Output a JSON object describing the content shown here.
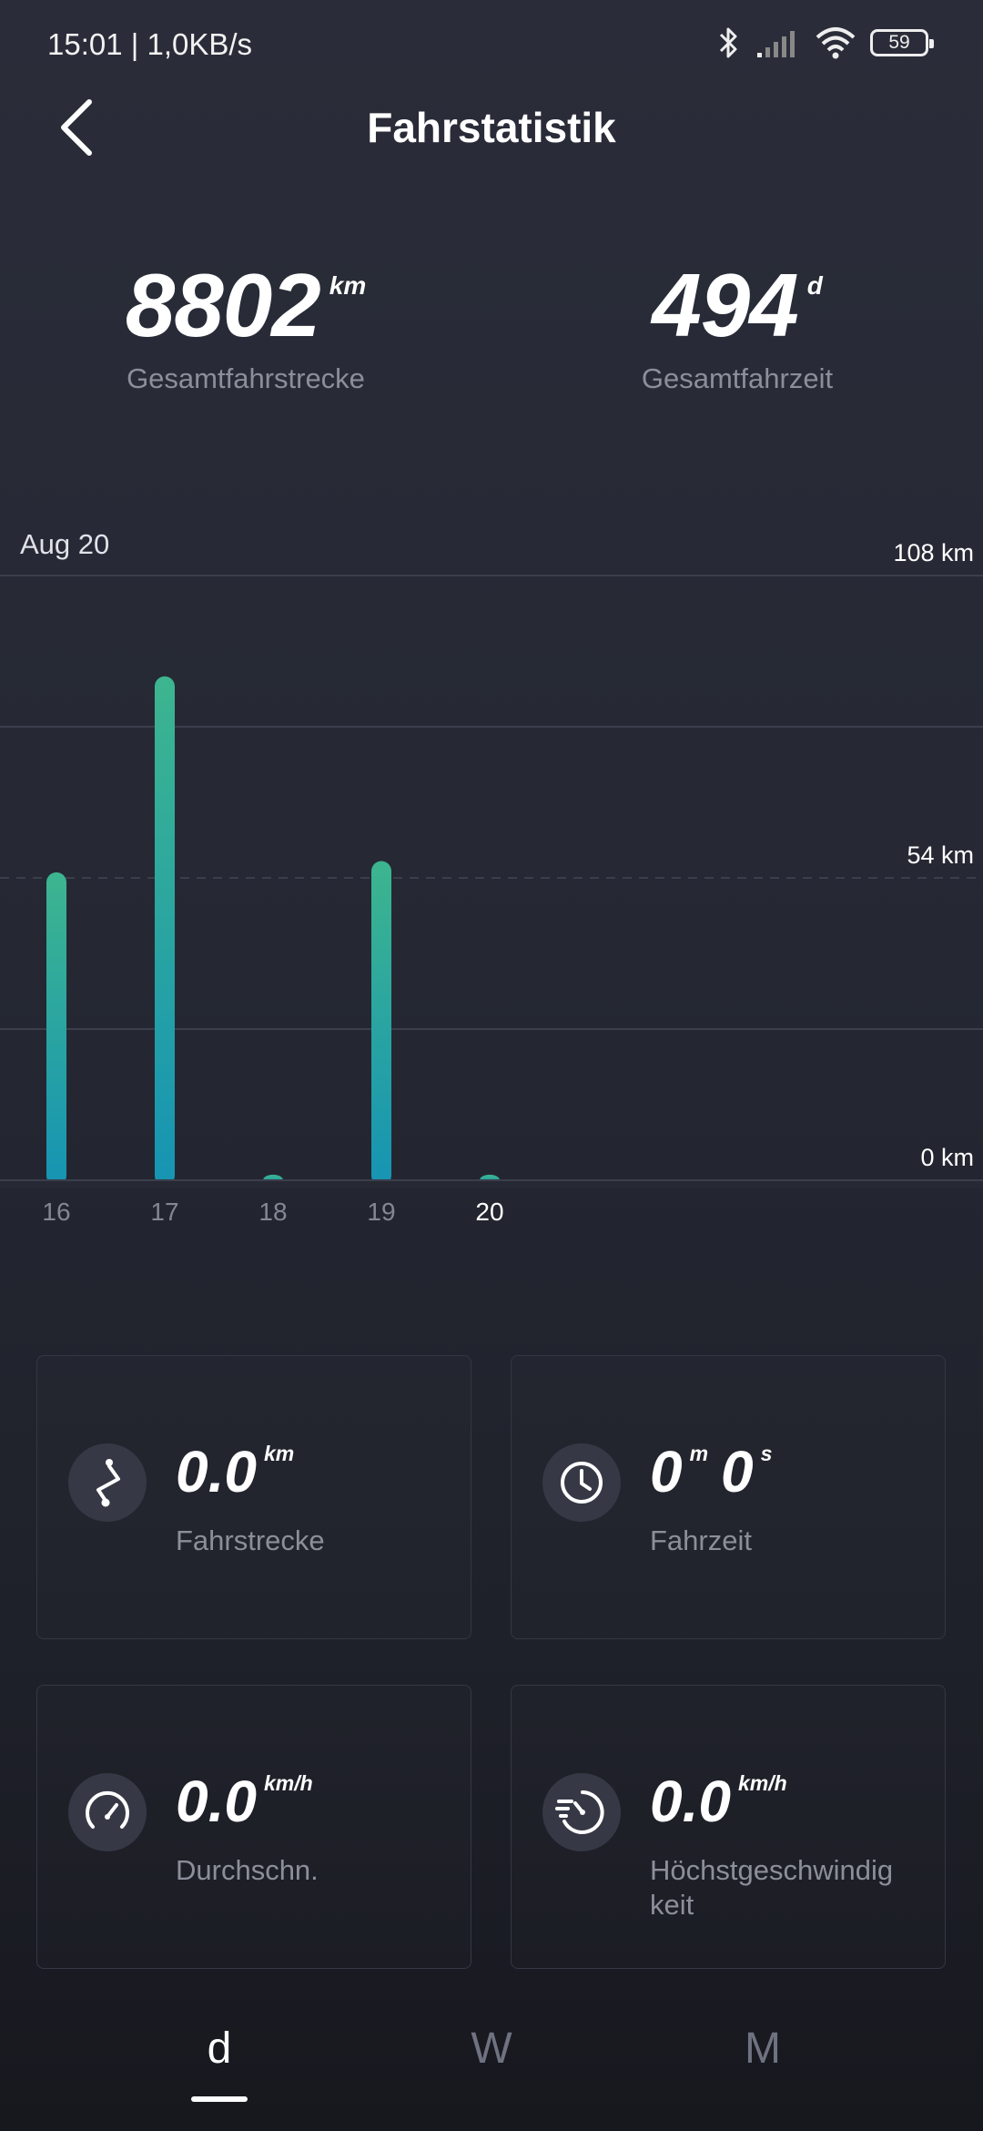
{
  "status_bar": {
    "time": "15:01 | 1,0KB/s",
    "battery": "59"
  },
  "header": {
    "title": "Fahrstatistik"
  },
  "totals": {
    "distance": {
      "value": "8802",
      "unit": "km",
      "label": "Gesamtfahrstrecke"
    },
    "time": {
      "value": "494",
      "unit": "d",
      "label": "Gesamtfahrzeit"
    }
  },
  "chart_data": {
    "type": "bar",
    "title": "Aug 20",
    "categories": [
      "16",
      "17",
      "18",
      "19",
      "20"
    ],
    "values": [
      55,
      90,
      1,
      57,
      1
    ],
    "selected": "20",
    "y_tick_labels": [
      "108 km",
      "54 km",
      "0 km"
    ],
    "y_ticks": [
      108,
      54,
      0
    ],
    "ylim": [
      0,
      108
    ],
    "colors": {
      "bar_top": "#3db58f",
      "bar_bottom": "#1694b3",
      "highlight_label": "#ffffff"
    }
  },
  "stats": [
    {
      "icon": "route-icon",
      "value": "0.0",
      "unit": "km",
      "label": "Fahrstrecke"
    },
    {
      "icon": "clock-icon",
      "value_min": "0",
      "unit_min": "m",
      "value_sec": "0",
      "unit_sec": "s",
      "label": "Fahrzeit"
    },
    {
      "icon": "speedometer-icon",
      "value": "0.0",
      "unit": "km/h",
      "label": "Durchschn."
    },
    {
      "icon": "max-speed-icon",
      "value": "0.0",
      "unit": "km/h",
      "label": "Höchstgeschwindig keit"
    }
  ],
  "tabs": [
    {
      "label": "d",
      "active": true
    },
    {
      "label": "W",
      "active": false
    },
    {
      "label": "M",
      "active": false
    }
  ]
}
